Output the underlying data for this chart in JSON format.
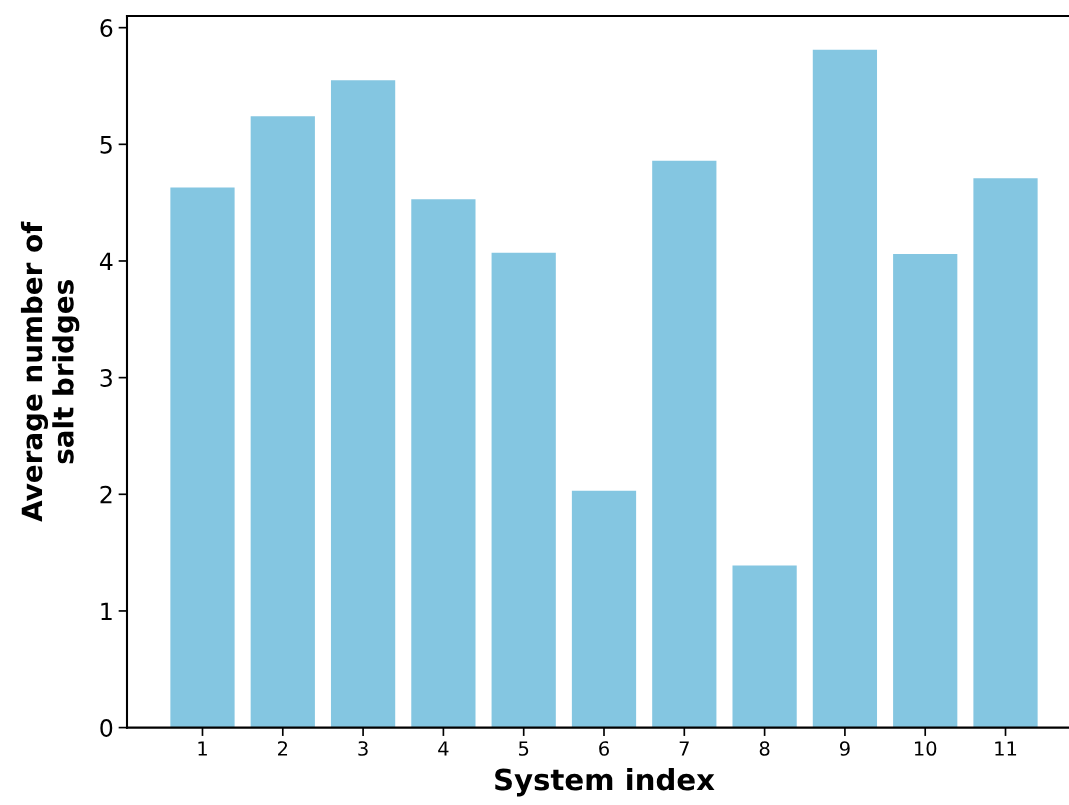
{
  "chart_data": {
    "type": "bar",
    "xlabel": "System index",
    "ylabel": "Average number of\nsalt bridges",
    "categories": [
      "1",
      "2",
      "3",
      "4",
      "5",
      "6",
      "7",
      "8",
      "9",
      "10",
      "11"
    ],
    "values": [
      4.63,
      5.24,
      5.55,
      4.53,
      4.07,
      2.03,
      4.86,
      1.39,
      5.81,
      4.06,
      4.71
    ],
    "color": "#84c6e1",
    "ylim": [
      0,
      6.1
    ],
    "yticks": [
      0,
      1,
      2,
      3,
      4,
      5,
      6
    ],
    "grid": false,
    "legend": false
  }
}
